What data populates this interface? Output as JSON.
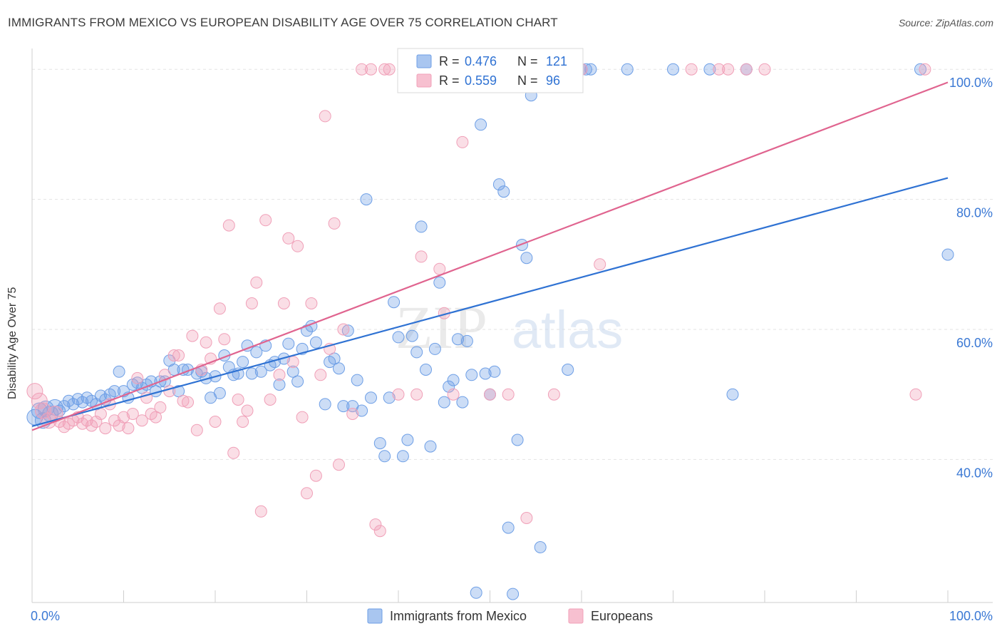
{
  "title": "IMMIGRANTS FROM MEXICO VS EUROPEAN DISABILITY AGE OVER 75 CORRELATION CHART",
  "source": "Source: ZipAtlas.com",
  "watermark": {
    "zip": "ZIP",
    "atlas": "atlas"
  },
  "chart_data": {
    "type": "scatter",
    "xlabel": "",
    "ylabel": "Disability Age Over 75",
    "xlim": [
      0,
      100
    ],
    "ylim": [
      18,
      102
    ],
    "x_tick_labels": [
      "0.0%",
      "100.0%"
    ],
    "y_ticks": [
      40,
      60,
      80,
      100
    ],
    "y_tick_labels": [
      "40.0%",
      "60.0%",
      "80.0%",
      "100.0%"
    ],
    "grid": true,
    "legend_position": "top-center",
    "series": [
      {
        "name": "Immigrants from Mexico",
        "color": "#6e9fe6",
        "line_color": "#2f72d3",
        "r_label": "R =",
        "r_value": "0.476",
        "n_label": "N =",
        "n_value": "121",
        "trend": {
          "x": [
            0,
            100
          ],
          "y": [
            45.1,
            83.3
          ]
        },
        "points": [
          [
            0.3,
            46.5
          ],
          [
            0.8,
            47.5
          ],
          [
            1.2,
            46
          ],
          [
            1.5,
            47.8
          ],
          [
            2,
            47
          ],
          [
            2.5,
            48
          ],
          [
            3,
            47.5
          ],
          [
            3.5,
            48.2
          ],
          [
            4,
            49
          ],
          [
            4.5,
            48.5
          ],
          [
            5,
            49.3
          ],
          [
            5.5,
            48.8
          ],
          [
            6,
            49.5
          ],
          [
            6.5,
            49
          ],
          [
            7,
            48.5
          ],
          [
            7.5,
            49.8
          ],
          [
            8,
            49.2
          ],
          [
            8.5,
            50
          ],
          [
            9,
            50.5
          ],
          [
            9.5,
            53.5
          ],
          [
            10,
            50.5
          ],
          [
            10.5,
            49.5
          ],
          [
            11,
            51.5
          ],
          [
            11.5,
            51.8
          ],
          [
            12,
            51
          ],
          [
            12.5,
            51.5
          ],
          [
            13,
            52
          ],
          [
            13.5,
            50.5
          ],
          [
            14,
            52
          ],
          [
            14.5,
            52
          ],
          [
            15,
            55.2
          ],
          [
            15.5,
            53.8
          ],
          [
            16,
            50.5
          ],
          [
            16.5,
            53.8
          ],
          [
            17,
            53.8
          ],
          [
            18,
            53.2
          ],
          [
            18.5,
            53.5
          ],
          [
            19,
            52.5
          ],
          [
            19.5,
            49.5
          ],
          [
            20,
            52.8
          ],
          [
            20.5,
            50.2
          ],
          [
            21,
            56
          ],
          [
            21.5,
            54.2
          ],
          [
            22,
            53
          ],
          [
            22.5,
            53.2
          ],
          [
            23,
            55
          ],
          [
            23.5,
            57.5
          ],
          [
            24,
            53.2
          ],
          [
            24.5,
            56.5
          ],
          [
            25,
            53.5
          ],
          [
            25.5,
            57.5
          ],
          [
            26,
            54.5
          ],
          [
            26.5,
            55
          ],
          [
            27,
            51.5
          ],
          [
            27.5,
            55.5
          ],
          [
            28,
            57.8
          ],
          [
            28.5,
            53.5
          ],
          [
            29,
            52
          ],
          [
            29.5,
            57
          ],
          [
            30,
            59.8
          ],
          [
            30.5,
            60.5
          ],
          [
            31,
            58
          ],
          [
            32,
            48.5
          ],
          [
            32.5,
            55
          ],
          [
            33,
            55.5
          ],
          [
            33.5,
            54
          ],
          [
            34,
            48.2
          ],
          [
            34.5,
            59.8
          ],
          [
            35,
            48.2
          ],
          [
            35.5,
            52.2
          ],
          [
            36,
            47.5
          ],
          [
            36.5,
            80
          ],
          [
            37,
            49.5
          ],
          [
            38,
            42.5
          ],
          [
            38.5,
            40.5
          ],
          [
            39,
            49.5
          ],
          [
            39.5,
            64.2
          ],
          [
            40,
            58.8
          ],
          [
            40.5,
            40.5
          ],
          [
            41,
            43
          ],
          [
            41.5,
            59
          ],
          [
            42,
            56.5
          ],
          [
            42.5,
            75.8
          ],
          [
            43,
            53.8
          ],
          [
            43.5,
            42
          ],
          [
            44,
            57
          ],
          [
            44.5,
            67.2
          ],
          [
            45,
            48.8
          ],
          [
            45.5,
            51.2
          ],
          [
            46,
            52.2
          ],
          [
            46.5,
            58.5
          ],
          [
            47,
            48.8
          ],
          [
            47.5,
            58.2
          ],
          [
            48,
            53
          ],
          [
            48.5,
            19.5
          ],
          [
            49,
            91.5
          ],
          [
            49.5,
            53.2
          ],
          [
            50,
            50
          ],
          [
            50.5,
            53.5
          ],
          [
            51,
            82.3
          ],
          [
            51.5,
            81.2
          ],
          [
            52,
            29.5
          ],
          [
            52.5,
            19.3
          ],
          [
            53,
            43
          ],
          [
            53.5,
            73
          ],
          [
            54,
            71
          ],
          [
            54.5,
            96
          ],
          [
            55,
            98
          ],
          [
            55.5,
            26.5
          ],
          [
            58.5,
            53.8
          ],
          [
            60,
            100
          ],
          [
            60.5,
            100
          ],
          [
            61,
            100
          ],
          [
            65,
            100
          ],
          [
            70,
            100
          ],
          [
            74,
            100
          ],
          [
            76.5,
            50
          ],
          [
            78,
            100
          ],
          [
            97,
            100
          ],
          [
            100,
            71.5
          ]
        ]
      },
      {
        "name": "Europeans",
        "color": "#f0a0b8",
        "line_color": "#e0648f",
        "r_label": "R =",
        "r_value": "0.559",
        "n_label": "N =",
        "n_value": "96",
        "trend": {
          "x": [
            0,
            100
          ],
          "y": [
            44.5,
            98
          ]
        },
        "points": [
          [
            0.3,
            50.5
          ],
          [
            0.8,
            49
          ],
          [
            1.2,
            47.5
          ],
          [
            1.8,
            46
          ],
          [
            2.5,
            47
          ],
          [
            3,
            45.8
          ],
          [
            3.5,
            45
          ],
          [
            4,
            45.5
          ],
          [
            4.5,
            46
          ],
          [
            5,
            46.5
          ],
          [
            5.5,
            45.5
          ],
          [
            6,
            46
          ],
          [
            6.5,
            45.2
          ],
          [
            7,
            45.8
          ],
          [
            7.5,
            47
          ],
          [
            8,
            44.8
          ],
          [
            8.5,
            48.5
          ],
          [
            9,
            46
          ],
          [
            9.5,
            45.2
          ],
          [
            10,
            46.5
          ],
          [
            10.5,
            44.8
          ],
          [
            11,
            47
          ],
          [
            11.5,
            52.5
          ],
          [
            12,
            46
          ],
          [
            12.5,
            49.5
          ],
          [
            13,
            47
          ],
          [
            13.5,
            46.5
          ],
          [
            14,
            48
          ],
          [
            14.5,
            53
          ],
          [
            15,
            50.5
          ],
          [
            15.5,
            56
          ],
          [
            16,
            56
          ],
          [
            16.5,
            49
          ],
          [
            17,
            48.8
          ],
          [
            17.5,
            59
          ],
          [
            18,
            44.5
          ],
          [
            18.5,
            53.8
          ],
          [
            19,
            58
          ],
          [
            19.5,
            55.5
          ],
          [
            20,
            45.8
          ],
          [
            20.5,
            63.2
          ],
          [
            21,
            58.5
          ],
          [
            21.5,
            76
          ],
          [
            22,
            41
          ],
          [
            22.5,
            49.2
          ],
          [
            23,
            45.8
          ],
          [
            23.5,
            47.5
          ],
          [
            24,
            64
          ],
          [
            24.5,
            67.2
          ],
          [
            25,
            32
          ],
          [
            25.5,
            76.8
          ],
          [
            26,
            49.2
          ],
          [
            27,
            53
          ],
          [
            27.5,
            64
          ],
          [
            28,
            74
          ],
          [
            28.5,
            55
          ],
          [
            29,
            72.8
          ],
          [
            29.5,
            46.5
          ],
          [
            30,
            34.8
          ],
          [
            30.5,
            64
          ],
          [
            31,
            37.5
          ],
          [
            31.5,
            53
          ],
          [
            32,
            92.8
          ],
          [
            32.5,
            57
          ],
          [
            33,
            76.3
          ],
          [
            33.5,
            39.2
          ],
          [
            34,
            60
          ],
          [
            35,
            47
          ],
          [
            36,
            100
          ],
          [
            37,
            100
          ],
          [
            37.5,
            30
          ],
          [
            38,
            29
          ],
          [
            38.5,
            100
          ],
          [
            39,
            100
          ],
          [
            40,
            50
          ],
          [
            42,
            50
          ],
          [
            42.5,
            71.2
          ],
          [
            43,
            100
          ],
          [
            44,
            100
          ],
          [
            44.5,
            69.3
          ],
          [
            45,
            62.5
          ],
          [
            46,
            50
          ],
          [
            47,
            88.8
          ],
          [
            48,
            100
          ],
          [
            50,
            50
          ],
          [
            51,
            100
          ],
          [
            52,
            50
          ],
          [
            53,
            100
          ],
          [
            54,
            31
          ],
          [
            57,
            50
          ],
          [
            58,
            100
          ],
          [
            60,
            100
          ],
          [
            62,
            70
          ],
          [
            72,
            100
          ],
          [
            75,
            100
          ],
          [
            76,
            100
          ],
          [
            78,
            100
          ],
          [
            80,
            100
          ],
          [
            96.5,
            50
          ],
          [
            97.5,
            100
          ]
        ]
      }
    ]
  }
}
